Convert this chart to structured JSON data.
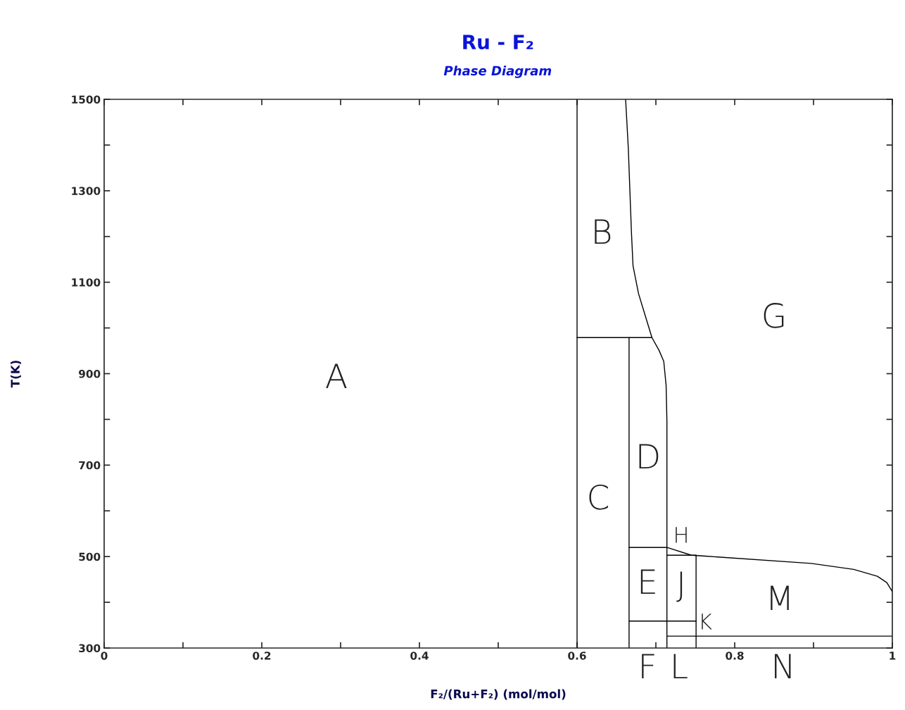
{
  "chart_data": {
    "type": "line",
    "title": "Ru - F₂",
    "subtitle": "Phase Diagram",
    "xlabel": "F₂/(Ru+F₂) (mol/mol)",
    "ylabel": "T(K)",
    "xlim": [
      0,
      1
    ],
    "ylim": [
      300,
      1500
    ],
    "xticks": [
      0,
      {
        "value": 0.1,
        "label": null
      },
      0.2,
      {
        "value": 0.3,
        "label": null
      },
      0.4,
      {
        "value": 0.5,
        "label": null
      },
      0.6,
      {
        "value": 0.7,
        "label": null
      },
      0.8,
      {
        "value": 0.9,
        "label": null
      },
      1
    ],
    "yticks": [
      300,
      {
        "value": 400,
        "label": null
      },
      500,
      {
        "value": 600,
        "label": null
      },
      700,
      {
        "value": 800,
        "label": null
      },
      900,
      {
        "value": 1000,
        "label": null
      },
      1100,
      {
        "value": 1200,
        "label": null
      },
      1300,
      {
        "value": 1400,
        "label": null
      },
      1500
    ],
    "grid": false,
    "legend": false,
    "marker": "none",
    "line_style": "solid",
    "series": [
      {
        "color": "#000000",
        "x": [
          0.6,
          0.6
        ],
        "values": [
          300,
          1500
        ]
      },
      {
        "color": "#000000",
        "x": [
          0.6616,
          0.665,
          0.669,
          0.671,
          0.678,
          0.687,
          0.695,
          0.704,
          0.71,
          0.713,
          0.714,
          0.714
        ],
        "values": [
          1500,
          1394,
          1209,
          1136,
          1075,
          1024,
          979,
          951,
          927,
          874,
          797,
          300
        ]
      },
      {
        "color": "#000000",
        "x": [
          0.6,
          0.695
        ],
        "values": [
          979,
          979
        ]
      },
      {
        "color": "#000000",
        "x": [
          0.666,
          0.666
        ],
        "values": [
          300,
          979
        ]
      },
      {
        "color": "#000000",
        "x": [
          0.666,
          0.714,
          0.745,
          0.7625,
          0.897,
          0.951,
          0.981,
          0.993,
          0.999,
          1.0
        ],
        "values": [
          520,
          520,
          503,
          501,
          485,
          472,
          457,
          443,
          426,
          423
        ]
      },
      {
        "color": "#000000",
        "x": [
          0.714,
          0.751
        ],
        "values": [
          503,
          503
        ]
      },
      {
        "color": "#000000",
        "x": [
          0.751,
          0.751
        ],
        "values": [
          300,
          503
        ]
      },
      {
        "color": "#000000",
        "x": [
          0.666,
          0.751
        ],
        "values": [
          359,
          359
        ]
      },
      {
        "color": "#000000",
        "x": [
          0.714,
          1.0
        ],
        "values": [
          326,
          326
        ]
      }
    ],
    "annotations": [
      "A",
      "B",
      "C",
      "D",
      "E",
      "F",
      "G",
      "H",
      "J",
      "K",
      "L",
      "M",
      "N"
    ]
  }
}
